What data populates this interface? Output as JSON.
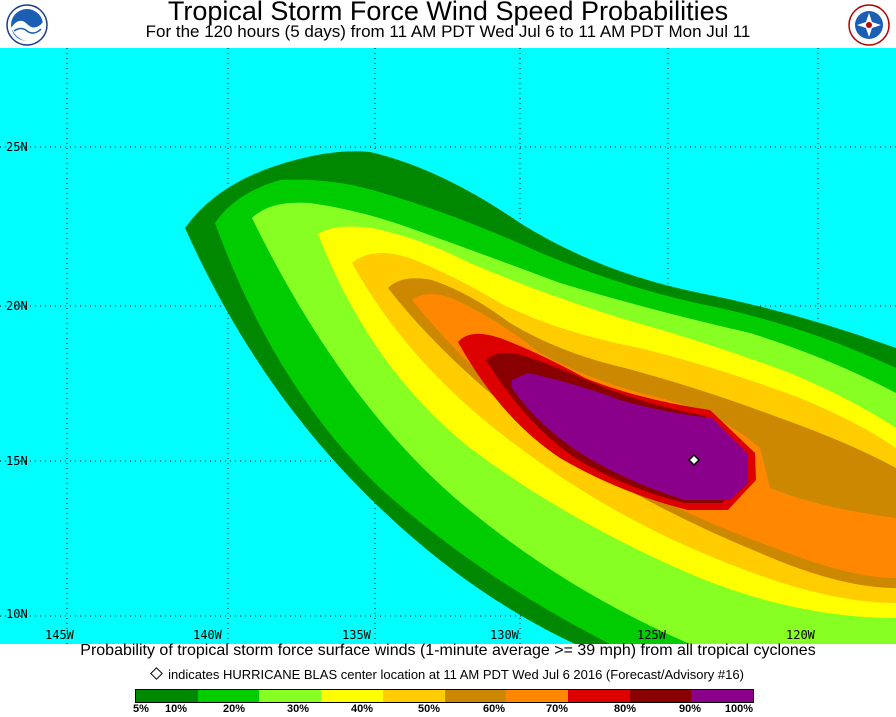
{
  "header": {
    "title": "Tropical Storm Force Wind Speed Probabilities",
    "subtitle": "For the 120 hours (5 days) from 11 AM PDT Wed Jul 6 to 11 AM PDT Mon Jul 11"
  },
  "logos": {
    "left": "noaa-logo",
    "right": "national-weather-service-logo"
  },
  "map": {
    "ocean_color": "#00ffff",
    "lat_labels": [
      "25N",
      "20N",
      "15N",
      "10N"
    ],
    "lon_labels": [
      "145W",
      "140W",
      "135W",
      "130W",
      "125W",
      "120W"
    ],
    "storm_center": {
      "name": "HURRICANE BLAS",
      "lon": -123.7,
      "lat": 15.1
    }
  },
  "caption": "Probability of tropical storm force surface winds (1-minute average >= 39 mph) from all tropical cyclones",
  "center_note": "indicates HURRICANE BLAS center location at 11 AM PDT Wed Jul 6 2016 (Forecast/Advisory #16)",
  "legend": {
    "colors": [
      "#008800",
      "#00cc00",
      "#88ff22",
      "#ffff00",
      "#ffcc00",
      "#cc8800",
      "#ff8800",
      "#dd0000",
      "#880000",
      "#8b008b"
    ],
    "labels": [
      "5%",
      "10%",
      "20%",
      "30%",
      "40%",
      "50%",
      "60%",
      "70%",
      "80%",
      "90%",
      "100%"
    ]
  }
}
